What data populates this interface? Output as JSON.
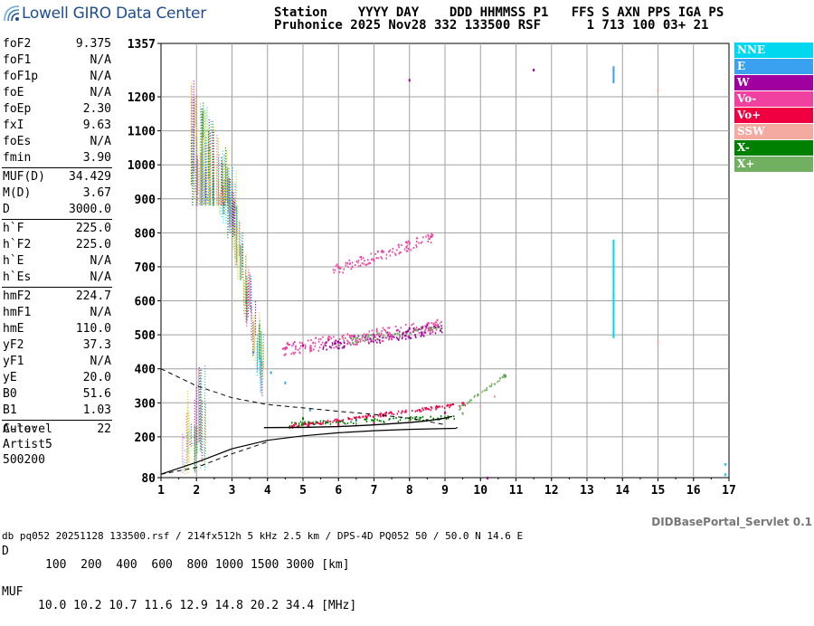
{
  "logo": {
    "text": "Lowell GIRO Data Center",
    "icon": "digisonde-wave-icon",
    "color": "#1e4e8c"
  },
  "header": {
    "line1": "Station    YYYY DAY    DDD HHMMSS P1   FFS S AXN PPS IGA PS",
    "line2": "Pruhonice 2025 Nov28 332 133500 RSF      1 713 100 03+ 21"
  },
  "params": {
    "group1": [
      {
        "label": "foF2",
        "value": "9.375"
      },
      {
        "label": "foF1",
        "value": "N/A"
      },
      {
        "label": "foF1p",
        "value": "N/A"
      },
      {
        "label": "foE",
        "value": "N/A"
      },
      {
        "label": "foEp",
        "value": "2.30"
      },
      {
        "label": "fxI",
        "value": "9.63"
      },
      {
        "label": "foEs",
        "value": "N/A"
      },
      {
        "label": "fmin",
        "value": "3.90"
      }
    ],
    "group2": [
      {
        "label": "MUF(D)",
        "value": "34.429"
      },
      {
        "label": "M(D)",
        "value": "3.67"
      },
      {
        "label": "D",
        "value": "3000.0"
      }
    ],
    "group3": [
      {
        "label": "h`F",
        "value": "225.0"
      },
      {
        "label": "h`F2",
        "value": "225.0"
      },
      {
        "label": "h`E",
        "value": "N/A"
      },
      {
        "label": "h`Es",
        "value": "N/A"
      }
    ],
    "group4": [
      {
        "label": "hmF2",
        "value": "224.7"
      },
      {
        "label": "hmF1",
        "value": "N/A"
      },
      {
        "label": "hmE",
        "value": "110.0"
      },
      {
        "label": "yF2",
        "value": "37.3"
      },
      {
        "label": "yF1",
        "value": "N/A"
      },
      {
        "label": "yE",
        "value": "20.0"
      },
      {
        "label": "B0",
        "value": "51.6"
      },
      {
        "label": "B1",
        "value": "1.03"
      }
    ],
    "group5": [
      {
        "label": "C-level",
        "value": "22"
      }
    ]
  },
  "auto": {
    "line1": "Auto:",
    "line2": "Artist5",
    "line3": "500200"
  },
  "legend": [
    {
      "label": "NNE",
      "color": "#00d8f0"
    },
    {
      "label": "E",
      "color": "#3aa0f0"
    },
    {
      "label": "W",
      "color": "#a000a0"
    },
    {
      "label": "Vo-",
      "color": "#f040a0"
    },
    {
      "label": "Vo+",
      "color": "#f00040"
    },
    {
      "label": "SSW",
      "color": "#f4aaa0"
    },
    {
      "label": "X-",
      "color": "#008000"
    },
    {
      "label": "X+",
      "color": "#70b060"
    }
  ],
  "footer": {
    "d_label": "D",
    "d_values": "100  200  400  600  800 1000 1500 3000 [km]",
    "muf_label": "MUF",
    "muf_values": "10.0 10.2 10.7 11.6 12.9 14.8 20.2 34.4 [MHz]",
    "servlet": "DIDBasePortal_Servlet 0.1",
    "db_line": "db pq052 20251128 133500.rsf / 214fx512h 5 kHz 2.5 km / DPS-4D PQ052 50 / 50.0 N 14.6 E"
  },
  "chart_data": {
    "type": "scatter",
    "xlim": [
      1,
      17
    ],
    "ylim": [
      80,
      1357
    ],
    "x_ticks": [
      "1",
      "2",
      "3",
      "4",
      "5",
      "6",
      "7",
      "8",
      "9",
      "10",
      "11",
      "12",
      "13",
      "14",
      "15",
      "16",
      "17"
    ],
    "y_ticks": [
      "1357",
      "1200",
      "1100",
      "1000",
      "900",
      "800",
      "700",
      "600",
      "500",
      "400",
      "300",
      "200",
      "80"
    ],
    "grid": true,
    "series": [
      {
        "name": "NNE",
        "color": "#00d8f0",
        "points": [
          [
            13.75,
            500
          ],
          [
            13.75,
            560
          ],
          [
            13.75,
            620
          ],
          [
            13.75,
            680
          ],
          [
            13.75,
            740
          ],
          [
            13.75,
            1250
          ],
          [
            13.75,
            1280
          ],
          [
            16.9,
            90
          ],
          [
            16.9,
            120
          ]
        ]
      },
      {
        "name": "E",
        "color": "#3aa0f0",
        "points": [
          [
            3.4,
            600
          ],
          [
            3.6,
            450
          ],
          [
            4.1,
            390
          ],
          [
            4.5,
            360
          ],
          [
            5.2,
            280
          ],
          [
            5.5,
            240
          ],
          [
            6.5,
            250
          ]
        ]
      },
      {
        "name": "W",
        "color": "#a000a0",
        "points": [
          [
            5.0,
            470
          ],
          [
            6.0,
            480
          ],
          [
            7.0,
            500
          ],
          [
            8.0,
            520
          ],
          [
            8.5,
            530
          ],
          [
            8.0,
            1250
          ],
          [
            11.5,
            1280
          ],
          [
            10.2,
            80
          ]
        ]
      },
      {
        "name": "Vo-",
        "color": "#f040a0",
        "points": [
          [
            6.0,
            700
          ],
          [
            7.0,
            720
          ],
          [
            8.0,
            770
          ],
          [
            8.6,
            790
          ],
          [
            4.5,
            460
          ],
          [
            6.0,
            470
          ],
          [
            7.5,
            500
          ],
          [
            8.8,
            530
          ]
        ]
      },
      {
        "name": "Vo+",
        "color": "#f00040",
        "points": [
          [
            4.8,
            240
          ],
          [
            6.0,
            237
          ],
          [
            7.0,
            240
          ],
          [
            8.0,
            250
          ],
          [
            9.0,
            272
          ],
          [
            9.5,
            300
          ]
        ]
      },
      {
        "name": "SSW",
        "color": "#f4aaa0",
        "points": [
          [
            10.0,
            290
          ],
          [
            10.4,
            320
          ],
          [
            15.0,
            480
          ],
          [
            15.0,
            1220
          ]
        ]
      },
      {
        "name": "X-",
        "color": "#008000",
        "points": [
          [
            5.0,
            255
          ],
          [
            6.0,
            245
          ],
          [
            7.0,
            248
          ],
          [
            8.0,
            255
          ],
          [
            10.7,
            380
          ]
        ]
      },
      {
        "name": "X+",
        "color": "#70b060",
        "points": [
          [
            6.5,
            240
          ],
          [
            8.0,
            250
          ],
          [
            9.0,
            260
          ],
          [
            9.5,
            270
          ]
        ]
      }
    ],
    "curves": {
      "virtual_height": [
        [
          3.9,
          227
        ],
        [
          5.0,
          228
        ],
        [
          6.0,
          230
        ],
        [
          7.0,
          235
        ],
        [
          8.0,
          242
        ],
        [
          8.5,
          247
        ],
        [
          9.0,
          255
        ],
        [
          9.2,
          260
        ]
      ],
      "profile": [
        [
          1.0,
          90
        ],
        [
          2.0,
          125
        ],
        [
          3.0,
          165
        ],
        [
          4.0,
          190
        ],
        [
          5.0,
          203
        ],
        [
          6.0,
          212
        ],
        [
          7.0,
          218
        ],
        [
          8.0,
          222
        ],
        [
          9.3,
          225
        ],
        [
          9.35,
          228
        ]
      ],
      "profile_upper": [
        [
          1.0,
          400
        ],
        [
          2.0,
          350
        ],
        [
          3.0,
          315
        ],
        [
          4.0,
          295
        ],
        [
          5.0,
          285
        ],
        [
          6.0,
          275
        ],
        [
          7.0,
          266
        ],
        [
          8.0,
          255
        ],
        [
          9.0,
          236
        ]
      ]
    }
  }
}
